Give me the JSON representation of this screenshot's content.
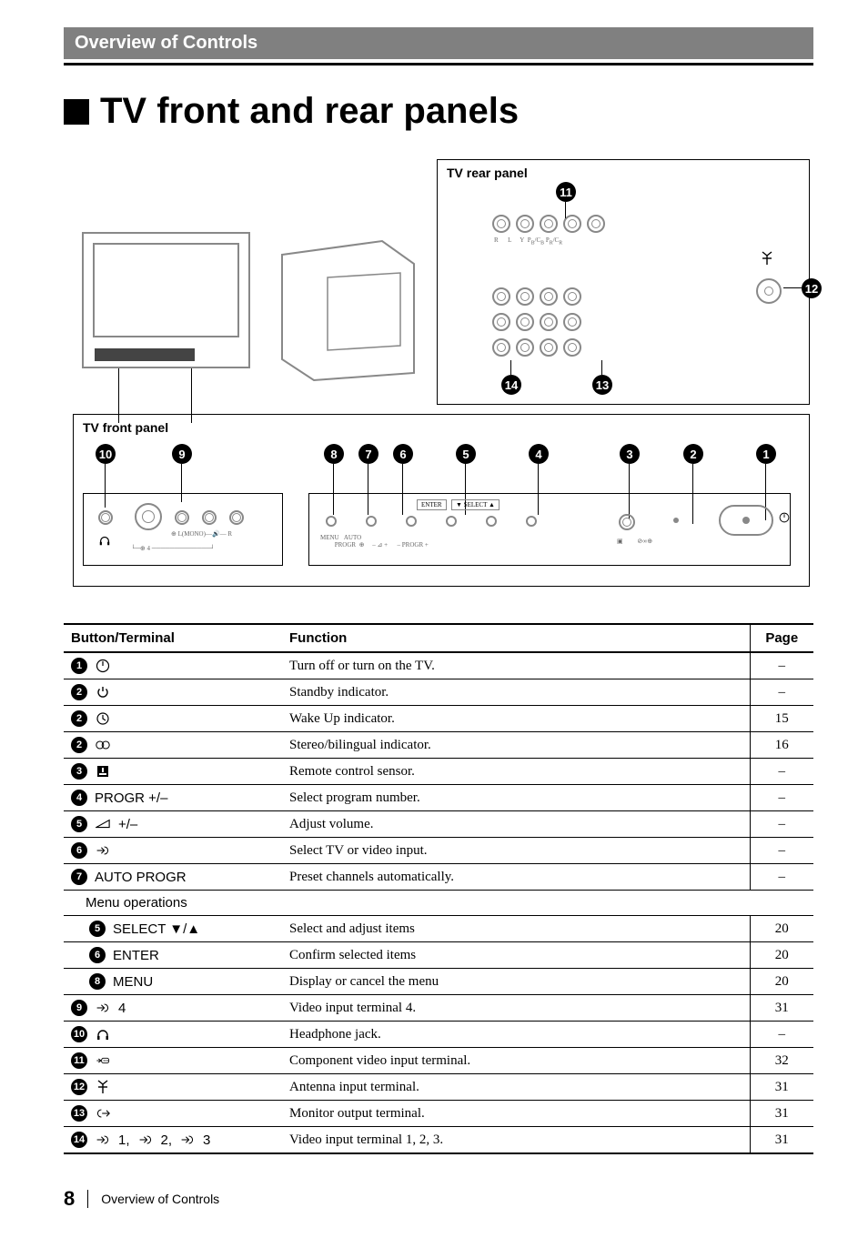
{
  "header": {
    "section_title": "Overview of Controls"
  },
  "title": "TV front and rear panels",
  "diagram": {
    "rear_label": "TV rear panel",
    "front_label": "TV front panel",
    "rear_nums": [
      "11",
      "12",
      "14",
      "13"
    ],
    "front_nums_top": [
      "10",
      "9",
      "8",
      "7",
      "6",
      "5",
      "4",
      "3",
      "2",
      "1"
    ],
    "front_micro_labels": [
      "MENU",
      "AUTO PROGR",
      "ENTER",
      "SELECT",
      "PROGR +"
    ]
  },
  "table": {
    "headers": {
      "button": "Button/Terminal",
      "function": "Function",
      "page": "Page"
    },
    "section_label": "Menu operations",
    "rows": [
      {
        "num": "1",
        "icon": "power-circle",
        "label": "",
        "function": "Turn off or turn on the TV.",
        "page": "–"
      },
      {
        "num": "2",
        "icon": "standby",
        "label": "",
        "function": "Standby indicator.",
        "page": "–"
      },
      {
        "num": "2",
        "icon": "clock",
        "label": "",
        "function": "Wake Up indicator.",
        "page": "15"
      },
      {
        "num": "2",
        "icon": "stereo",
        "label": "",
        "function": "Stereo/bilingual indicator.",
        "page": "16"
      },
      {
        "num": "3",
        "icon": "remote-sensor",
        "label": "",
        "function": "Remote control sensor.",
        "page": "–"
      },
      {
        "num": "4",
        "icon": "",
        "label": "PROGR +/–",
        "function": "Select program number.",
        "page": "–"
      },
      {
        "num": "5",
        "icon": "volume",
        "label": "+/–",
        "function": "Adjust volume.",
        "page": "–"
      },
      {
        "num": "6",
        "icon": "input",
        "label": "",
        "function": "Select TV or video input.",
        "page": "–"
      },
      {
        "num": "7",
        "icon": "",
        "label": "AUTO PROGR",
        "function": "Preset channels automatically.",
        "page": "–"
      }
    ],
    "menu_rows": [
      {
        "num": "5",
        "icon": "",
        "label": "SELECT ▼/▲",
        "function": "Select and adjust items",
        "page": "20"
      },
      {
        "num": "6",
        "icon": "",
        "label": "ENTER",
        "function": "Confirm selected items",
        "page": "20"
      },
      {
        "num": "8",
        "icon": "",
        "label": "MENU",
        "function": "Display or cancel the menu",
        "page": "20"
      }
    ],
    "terminal_rows": [
      {
        "num": "9",
        "icon": "input",
        "label": "4",
        "function": "Video input terminal 4.",
        "page": "31"
      },
      {
        "num": "10",
        "icon": "headphone",
        "label": "",
        "function": "Headphone jack.",
        "page": "–"
      },
      {
        "num": "11",
        "icon": "component",
        "label": "",
        "function": "Component video input terminal.",
        "page": "32"
      },
      {
        "num": "12",
        "icon": "antenna",
        "label": "",
        "function": "Antenna input terminal.",
        "page": "31"
      },
      {
        "num": "13",
        "icon": "output",
        "label": "",
        "function": "Monitor output terminal.",
        "page": "31"
      },
      {
        "num": "14",
        "icon": "input",
        "label_multi": [
          "1,",
          "2,",
          "3"
        ],
        "function": "Video input terminal 1, 2, 3.",
        "page": "31"
      }
    ]
  },
  "footer": {
    "page_number": "8",
    "section": "Overview of Controls"
  }
}
